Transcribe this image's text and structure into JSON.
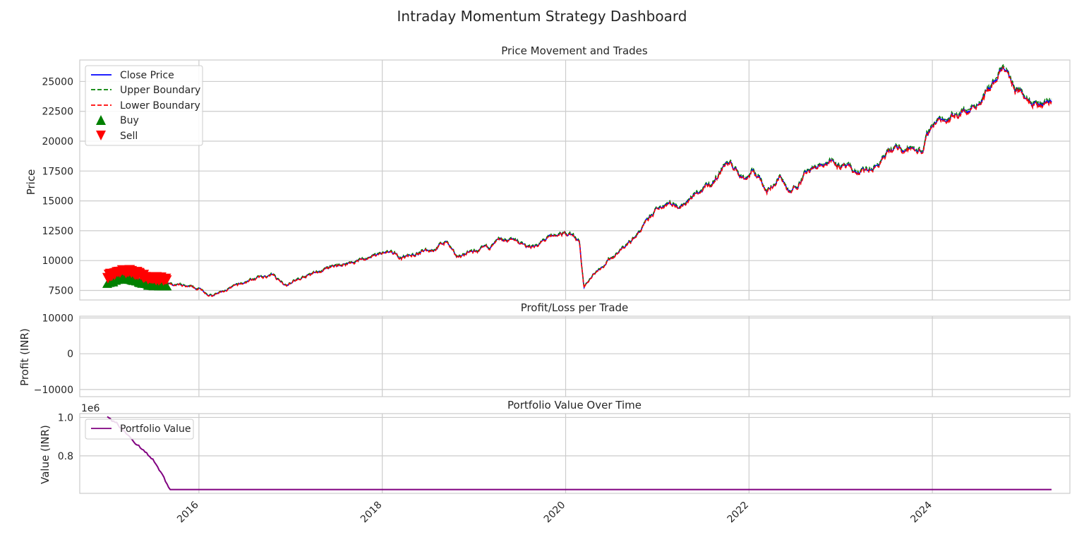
{
  "suptitle": "Intraday Momentum Strategy Dashboard",
  "x_ticks": [
    "2016",
    "2018",
    "2020",
    "2022",
    "2024"
  ],
  "chart_data": [
    {
      "type": "line",
      "title": "Price Movement and Trades",
      "ylabel": "Price",
      "xlim": [
        2014.7,
        2025.5
      ],
      "ylim": [
        6700,
        26800
      ],
      "yticks": [
        7500,
        10000,
        12500,
        15000,
        17500,
        20000,
        22500,
        25000
      ],
      "grid": true,
      "legend_position": "top-left",
      "legend": [
        "Close Price",
        "Upper Boundary",
        "Lower Boundary",
        "Buy",
        "Sell"
      ],
      "colors": {
        "close": "#0000ff",
        "upper": "#008000",
        "lower": "#ff0000",
        "buy": "#008000",
        "sell": "#ff0000"
      },
      "close_anchors": [
        [
          2015.0,
          8300
        ],
        [
          2015.15,
          8800
        ],
        [
          2015.3,
          8600
        ],
        [
          2015.45,
          8200
        ],
        [
          2015.6,
          8100
        ],
        [
          2015.75,
          7900
        ],
        [
          2015.9,
          7700
        ],
        [
          2016.05,
          7500
        ],
        [
          2016.15,
          7000
        ],
        [
          2016.3,
          7550
        ],
        [
          2016.45,
          7950
        ],
        [
          2016.6,
          8500
        ],
        [
          2016.8,
          8750
        ],
        [
          2016.95,
          8050
        ],
        [
          2017.1,
          8450
        ],
        [
          2017.3,
          9050
        ],
        [
          2017.5,
          9500
        ],
        [
          2017.7,
          9950
        ],
        [
          2017.9,
          10300
        ],
        [
          2018.05,
          10600
        ],
        [
          2018.2,
          10250
        ],
        [
          2018.4,
          10650
        ],
        [
          2018.55,
          10950
        ],
        [
          2018.7,
          11600
        ],
        [
          2018.8,
          10300
        ],
        [
          2018.95,
          10650
        ],
        [
          2019.1,
          10850
        ],
        [
          2019.3,
          11600
        ],
        [
          2019.45,
          11800
        ],
        [
          2019.6,
          11000
        ],
        [
          2019.75,
          11600
        ],
        [
          2019.9,
          12100
        ],
        [
          2020.05,
          12300
        ],
        [
          2020.15,
          11700
        ],
        [
          2020.2,
          7600
        ],
        [
          2020.3,
          8900
        ],
        [
          2020.5,
          10300
        ],
        [
          2020.7,
          11500
        ],
        [
          2020.85,
          12800
        ],
        [
          2021.0,
          14300
        ],
        [
          2021.1,
          14900
        ],
        [
          2021.25,
          14700
        ],
        [
          2021.45,
          15700
        ],
        [
          2021.6,
          16400
        ],
        [
          2021.75,
          18300
        ],
        [
          2021.95,
          17000
        ],
        [
          2022.05,
          17500
        ],
        [
          2022.2,
          16000
        ],
        [
          2022.35,
          17000
        ],
        [
          2022.45,
          15500
        ],
        [
          2022.6,
          17300
        ],
        [
          2022.75,
          17800
        ],
        [
          2022.9,
          18600
        ],
        [
          2023.05,
          17700
        ],
        [
          2023.2,
          17300
        ],
        [
          2023.35,
          17600
        ],
        [
          2023.5,
          18800
        ],
        [
          2023.65,
          19500
        ],
        [
          2023.8,
          19300
        ],
        [
          2023.9,
          19400
        ],
        [
          2024.0,
          21500
        ],
        [
          2024.2,
          22200
        ],
        [
          2024.4,
          22700
        ],
        [
          2024.55,
          23800
        ],
        [
          2024.7,
          25100
        ],
        [
          2024.8,
          26100
        ],
        [
          2024.9,
          24300
        ],
        [
          2025.05,
          23900
        ],
        [
          2025.2,
          23200
        ],
        [
          2025.3,
          23500
        ]
      ],
      "trade_markers": {
        "start": 2015.0,
        "end": 2015.65,
        "buy_range": [
          7800,
          8400
        ],
        "sell_range": [
          8300,
          9300
        ]
      }
    },
    {
      "type": "bar",
      "title": "Profit/Loss per Trade",
      "ylabel": "Profit (INR)",
      "ylim": [
        -12000,
        10500
      ],
      "yticks": [
        -10000,
        0,
        10000
      ],
      "ytick_labels": [
        "−10000",
        "0",
        "10000"
      ],
      "grid": true
    },
    {
      "type": "line",
      "title": "Portfolio Value Over Time",
      "ylabel": "Value (INR)",
      "offset_label": "1e6",
      "ylim": [
        0.605,
        1.02
      ],
      "yticks": [
        0.8,
        1.0
      ],
      "ytick_labels": [
        "0.8",
        "1.0"
      ],
      "grid": true,
      "legend_position": "top-left",
      "legend": [
        "Portfolio Value"
      ],
      "colors": {
        "portfolio": "#800080"
      },
      "portfolio_anchors": [
        [
          2015.0,
          1.0
        ],
        [
          2015.1,
          0.97
        ],
        [
          2015.2,
          0.92
        ],
        [
          2015.3,
          0.87
        ],
        [
          2015.4,
          0.83
        ],
        [
          2015.5,
          0.78
        ],
        [
          2015.6,
          0.7
        ],
        [
          2015.68,
          0.625
        ],
        [
          2025.3,
          0.625
        ]
      ]
    }
  ]
}
